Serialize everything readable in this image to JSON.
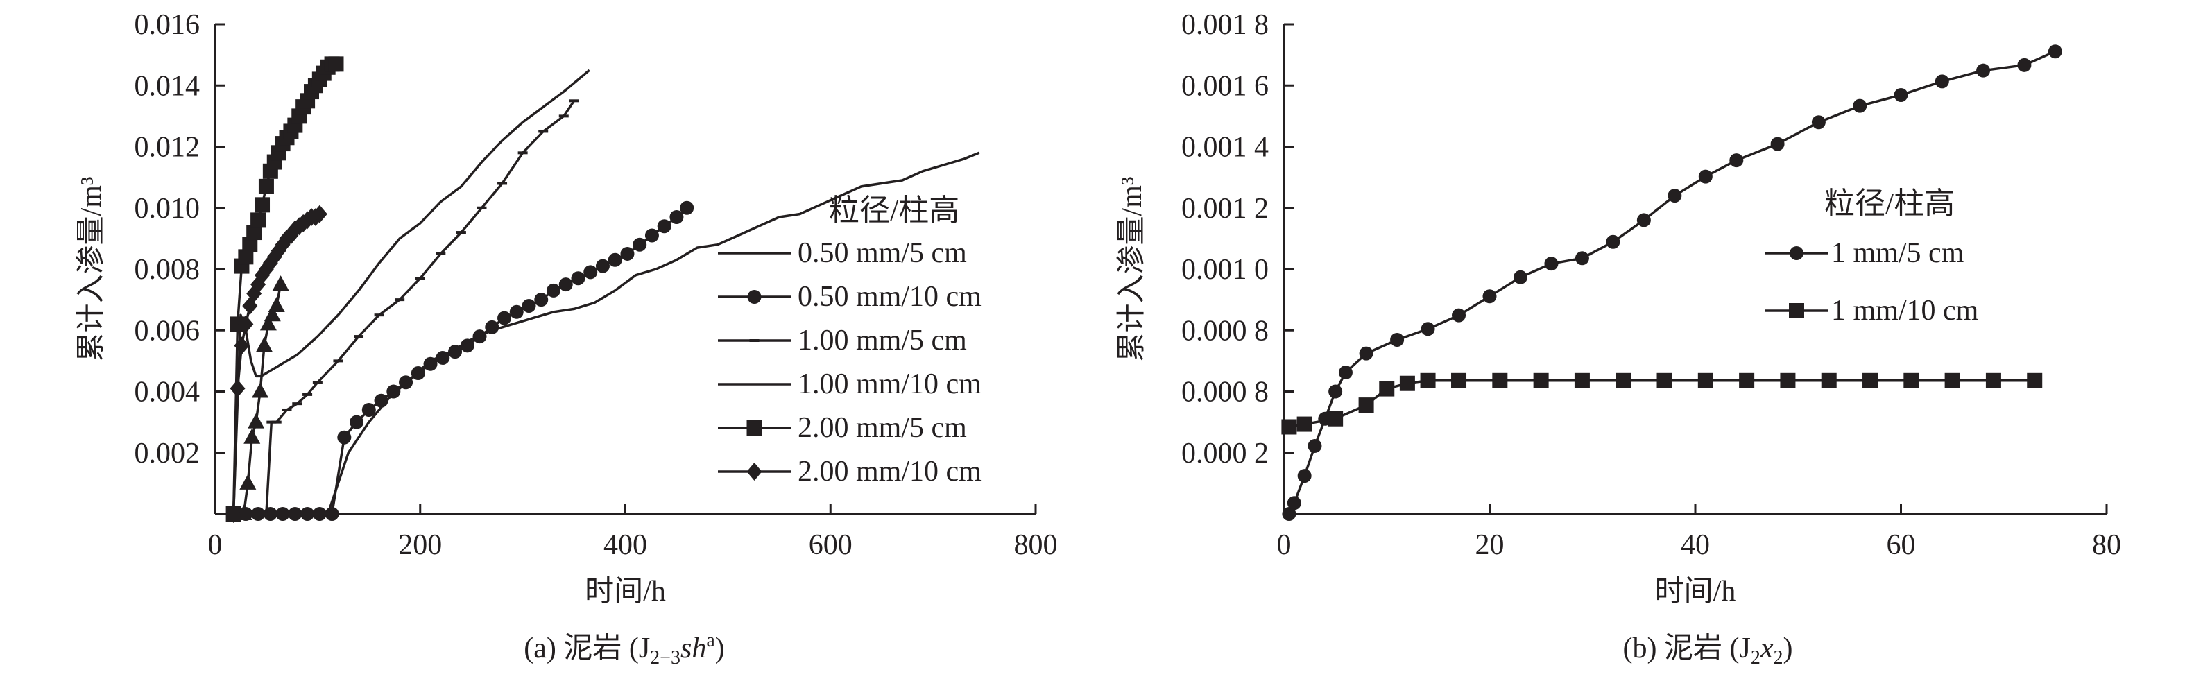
{
  "chart_data": [
    {
      "type": "line",
      "caption": {
        "prefix": "(a) 泥岩 (J",
        "sub": "2−3",
        "italic": "sh",
        "sup": "a",
        "suffix": ")"
      },
      "xlabel": "时间/h",
      "ylabel": "累计入渗量/m³",
      "xlim": [
        0,
        800
      ],
      "ylim": [
        0,
        0.016
      ],
      "xticks": [
        "0",
        "200",
        "400",
        "600",
        "800"
      ],
      "yticks": [
        "0.002",
        "0.004",
        "0.006",
        "0.008",
        "0.010",
        "0.012",
        "0.014",
        "0.016"
      ],
      "legend_title": "粒径/柱高",
      "series": [
        {
          "name": "0.50 mm/5 cm",
          "marker": "none",
          "x": [
            18,
            25,
            30,
            35,
            40,
            45,
            50,
            60,
            70,
            80,
            100,
            120,
            140,
            160,
            180,
            200,
            220,
            240,
            260,
            280,
            300,
            320,
            340,
            365
          ],
          "y": [
            0,
            0.0065,
            0.006,
            0.005,
            0.0045,
            0.0045,
            0.0046,
            0.0048,
            0.005,
            0.0052,
            0.0058,
            0.0065,
            0.0073,
            0.0082,
            0.009,
            0.0095,
            0.0102,
            0.0107,
            0.0115,
            0.0122,
            0.0128,
            0.0133,
            0.0138,
            0.0145
          ]
        },
        {
          "name": "0.50 mm/10 cm",
          "marker": "circle",
          "x": [
            18,
            30,
            42,
            54,
            66,
            78,
            90,
            102,
            114,
            126,
            138,
            150,
            162,
            174,
            186,
            198,
            210,
            222,
            234,
            246,
            258,
            270,
            282,
            294,
            306,
            318,
            330,
            342,
            354,
            366,
            378,
            390,
            402,
            414,
            426,
            438,
            450,
            460
          ],
          "y": [
            0,
            0,
            0,
            0,
            0,
            0,
            0,
            0,
            0,
            0.0025,
            0.003,
            0.0034,
            0.0037,
            0.004,
            0.0043,
            0.0046,
            0.0049,
            0.0051,
            0.0053,
            0.0055,
            0.0058,
            0.0061,
            0.0064,
            0.0066,
            0.0068,
            0.007,
            0.0073,
            0.0075,
            0.0077,
            0.0079,
            0.0081,
            0.0083,
            0.0085,
            0.0088,
            0.0091,
            0.0094,
            0.0097,
            0.01
          ]
        },
        {
          "name": "1.00 mm/5 cm",
          "marker": "tick",
          "x": [
            50,
            55,
            60,
            70,
            80,
            90,
            100,
            120,
            140,
            160,
            180,
            200,
            220,
            240,
            260,
            280,
            300,
            320,
            340,
            350
          ],
          "y": [
            0,
            0.003,
            0.003,
            0.0034,
            0.0036,
            0.0039,
            0.0043,
            0.005,
            0.0058,
            0.0065,
            0.007,
            0.0077,
            0.0085,
            0.0092,
            0.01,
            0.0108,
            0.0118,
            0.0125,
            0.013,
            0.0135
          ]
        },
        {
          "name": "1.00 mm/10 cm",
          "marker": "none",
          "x": [
            18,
            110,
            130,
            150,
            170,
            190,
            210,
            230,
            250,
            270,
            290,
            310,
            330,
            350,
            370,
            390,
            410,
            430,
            450,
            470,
            490,
            510,
            530,
            550,
            570,
            590,
            610,
            630,
            650,
            670,
            690,
            710,
            730,
            745
          ],
          "y": [
            0,
            0,
            0.002,
            0.003,
            0.0038,
            0.0044,
            0.005,
            0.0053,
            0.0057,
            0.006,
            0.0062,
            0.0064,
            0.0066,
            0.0067,
            0.0069,
            0.0073,
            0.0078,
            0.008,
            0.0083,
            0.0087,
            0.0088,
            0.0091,
            0.0094,
            0.0097,
            0.0098,
            0.0101,
            0.0104,
            0.0107,
            0.0108,
            0.0109,
            0.0112,
            0.0114,
            0.0116,
            0.0118
          ]
        },
        {
          "name": "2.00 mm/5 cm",
          "marker": "square",
          "x": [
            18,
            22,
            26,
            30,
            34,
            38,
            42,
            46,
            50,
            54,
            58,
            62,
            66,
            70,
            74,
            78,
            82,
            86,
            90,
            94,
            98,
            102,
            106,
            110,
            114,
            118
          ],
          "y": [
            0,
            0.0062,
            0.0081,
            0.0084,
            0.0088,
            0.0092,
            0.0096,
            0.0101,
            0.0107,
            0.0112,
            0.0115,
            0.0118,
            0.0121,
            0.0123,
            0.0125,
            0.0127,
            0.013,
            0.0133,
            0.0135,
            0.0138,
            0.014,
            0.0142,
            0.0144,
            0.0146,
            0.0147,
            0.0147
          ]
        },
        {
          "name": "2.00 mm/10 cm",
          "marker": "diamond",
          "x": [
            18,
            22,
            26,
            30,
            34,
            38,
            42,
            46,
            50,
            54,
            58,
            62,
            66,
            70,
            74,
            78,
            82,
            86,
            90,
            94,
            98,
            102
          ],
          "y": [
            0,
            0.0041,
            0.0055,
            0.0062,
            0.0068,
            0.0072,
            0.0075,
            0.0078,
            0.008,
            0.0082,
            0.0084,
            0.0086,
            0.0088,
            0.009,
            0.0091,
            0.0093,
            0.0094,
            0.0095,
            0.0096,
            0.0097,
            0.0097,
            0.0098
          ]
        },
        {
          "name": "",
          "marker": "triangle",
          "x": [
            28,
            32,
            36,
            40,
            44,
            48,
            52,
            56,
            60,
            64
          ],
          "y": [
            0,
            0.001,
            0.0025,
            0.003,
            0.004,
            0.0055,
            0.0062,
            0.0065,
            0.0068,
            0.0075
          ]
        }
      ]
    },
    {
      "type": "line",
      "caption": {
        "prefix": "(b) 泥岩 (J",
        "sub": "2",
        "italic": "x",
        "sub2": "2",
        "suffix": ")"
      },
      "xlabel": "时间/h",
      "ylabel": "累计入渗量/m³",
      "xlim": [
        0,
        80
      ],
      "ylim": [
        0,
        0.0018
      ],
      "xticks": [
        "0",
        "20",
        "40",
        "60",
        "80"
      ],
      "yticks": [
        "0.000 2",
        "0.000 8",
        "0.000 8",
        "0.001 0",
        "0.001 2",
        "0.001 4",
        "0.001 6",
        "0.001 8"
      ],
      "legend_title": "粒径/柱高",
      "series": [
        {
          "name": "1 mm/5 cm",
          "marker": "circle",
          "x": [
            0.5,
            1,
            2,
            3,
            4,
            5,
            6,
            8,
            11,
            14,
            17,
            20,
            23,
            26,
            29,
            32,
            35,
            38,
            41,
            44,
            48,
            52,
            56,
            60,
            64,
            68,
            72,
            75
          ],
          "y": [
            0,
            4e-05,
            0.00014,
            0.00025,
            0.00035,
            0.00045,
            0.00052,
            0.00059,
            0.00064,
            0.00068,
            0.00073,
            0.0008,
            0.00087,
            0.00092,
            0.00094,
            0.001,
            0.00108,
            0.00117,
            0.00124,
            0.0013,
            0.00136,
            0.00144,
            0.0015,
            0.00154,
            0.00159,
            0.00163,
            0.00165,
            0.0017
          ]
        },
        {
          "name": "1 mm/10 cm",
          "marker": "square",
          "x": [
            0.5,
            2,
            5,
            8,
            10,
            12,
            14,
            17,
            21,
            25,
            29,
            33,
            37,
            41,
            45,
            49,
            53,
            57,
            61,
            65,
            69,
            73
          ],
          "y": [
            0.00032,
            0.00033,
            0.00035,
            0.0004,
            0.00046,
            0.00048,
            0.00049,
            0.00049,
            0.00049,
            0.00049,
            0.00049,
            0.00049,
            0.00049,
            0.00049,
            0.00049,
            0.00049,
            0.00049,
            0.00049,
            0.00049,
            0.00049,
            0.00049,
            0.00049
          ]
        }
      ]
    }
  ]
}
